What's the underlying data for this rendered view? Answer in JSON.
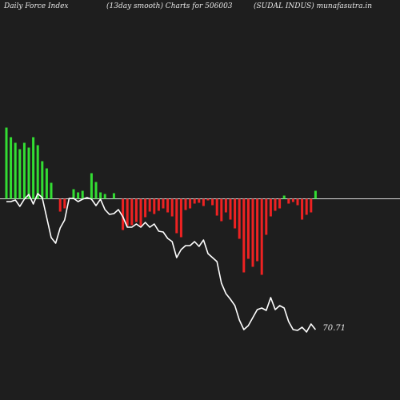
{
  "header": {
    "left": "Daily Force  Index",
    "center": "(13day smooth) Charts for 506003",
    "right": "(SUDAL INDUS) munafasutra.in"
  },
  "colors": {
    "background": "#1e1e1e",
    "positive": "#33dd33",
    "negative": "#ee2222",
    "zero_line": "#dddddd",
    "price_line": "#ffffff",
    "text": "#e6e6e6"
  },
  "chart_data": {
    "type": "bar",
    "series": [
      {
        "name": "",
        "kind": "force_index_bars",
        "values": [
          89,
          77,
          70,
          62,
          70,
          64,
          77,
          67,
          47,
          38,
          20,
          0,
          -16,
          -12,
          0,
          12,
          8,
          10,
          0,
          32,
          21,
          8,
          6,
          0,
          7,
          0,
          -39,
          -34,
          -33,
          -29,
          -34,
          -23,
          -16,
          -19,
          -15,
          -12,
          -17,
          -22,
          -43,
          -48,
          -14,
          -12,
          -6,
          -5,
          -9,
          -2,
          -8,
          -21,
          -28,
          -17,
          -26,
          -37,
          -50,
          -92,
          -75,
          -85,
          -78,
          -95,
          -45,
          -22,
          -15,
          -12,
          4,
          -6,
          -4,
          -8,
          -26,
          -20,
          -17,
          10
        ]
      },
      {
        "name": "",
        "kind": "price_line",
        "values": [
          0,
          0,
          2,
          -6,
          3,
          9,
          -3,
          10,
          5,
          -20,
          -45,
          -52,
          -33,
          -23,
          4,
          4,
          0,
          3,
          5,
          3,
          -5,
          3,
          -10,
          -16,
          -15,
          -10,
          -19,
          -32,
          -32,
          -28,
          -32,
          -26,
          -32,
          -28,
          -37,
          -38,
          -46,
          -50,
          -70,
          -60,
          -55,
          -55,
          -50,
          -56,
          -48,
          -65,
          -70,
          -75,
          -102,
          -115,
          -122,
          -130,
          -148,
          -160,
          -155,
          -145,
          -135,
          -133,
          -136,
          -120,
          -135,
          -130,
          -133,
          -150,
          -160,
          -161,
          -157,
          -163,
          -153,
          -160
        ]
      }
    ],
    "last_value_label": "70.71",
    "grid": false,
    "legend": "none"
  }
}
